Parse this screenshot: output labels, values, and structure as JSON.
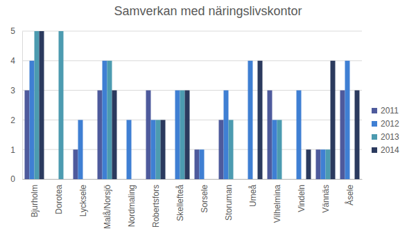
{
  "chart_data": {
    "type": "bar",
    "title": "Samverkan med näringslivskontor",
    "categories": [
      "Bjurholm",
      "Dorotea",
      "Lycksele",
      "Malå/Norsjö",
      "Nordmaling",
      "Robertsfors",
      "Skellefteå",
      "Sorsele",
      "Storuman",
      "Umeå",
      "Vilhelmina",
      "Vindeln",
      "Vännäs",
      "Åsele"
    ],
    "series": [
      {
        "name": "2011",
        "color": "#4e5a9c",
        "values": [
          3,
          null,
          1,
          3,
          null,
          3,
          null,
          1,
          2,
          null,
          3,
          null,
          1,
          3
        ]
      },
      {
        "name": "2012",
        "color": "#3f7fd3",
        "values": [
          4,
          null,
          2,
          4,
          2,
          2,
          3,
          1,
          3,
          4,
          2,
          3,
          1,
          4
        ]
      },
      {
        "name": "2013",
        "color": "#4c9bb0",
        "values": [
          5,
          5,
          null,
          4,
          null,
          2,
          3,
          null,
          2,
          null,
          2,
          null,
          1,
          null
        ]
      },
      {
        "name": "2014",
        "color": "#2b3a5e",
        "values": [
          5,
          null,
          null,
          3,
          null,
          2,
          3,
          null,
          null,
          4,
          null,
          1,
          4,
          3
        ]
      }
    ],
    "ylim": [
      0,
      5
    ],
    "yticks": [
      0,
      1,
      2,
      3,
      4,
      5
    ],
    "grid": true,
    "legend": "right"
  }
}
